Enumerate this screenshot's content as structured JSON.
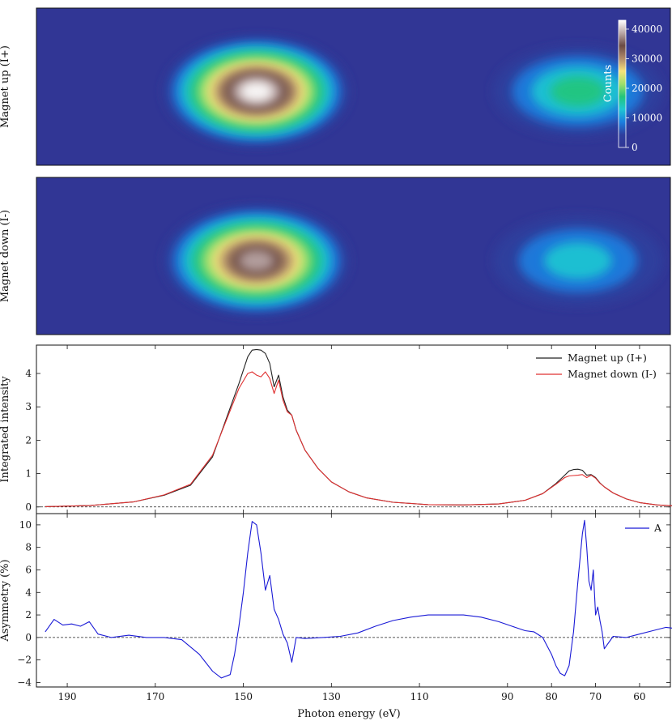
{
  "chart_data": [
    {
      "type": "heatmap",
      "ylabel": "Magnet up (I+)",
      "colorbar": {
        "label": "Counts",
        "ticks": [
          "0",
          "10000",
          "20000",
          "30000",
          "40000"
        ],
        "tick_values": [
          0,
          10000,
          20000,
          30000,
          40000
        ],
        "range": [
          0,
          43000
        ],
        "colors": [
          "#313695",
          "#2f3f9e",
          "#1a7fe0",
          "#1ec7d2",
          "#22c67a",
          "#9fe06a",
          "#f6e27a",
          "#b08a6a",
          "#6b4a44",
          "#b9a6a6",
          "#ffffff"
        ]
      },
      "blobs": [
        {
          "center_ev": 147,
          "peak_counts": 42000
        },
        {
          "center_ev": 74,
          "peak_counts": 16000
        }
      ]
    },
    {
      "type": "heatmap",
      "ylabel": "Magnet down (I-)",
      "blobs": [
        {
          "center_ev": 147,
          "peak_counts": 40000
        },
        {
          "center_ev": 74,
          "peak_counts": 14000
        }
      ]
    },
    {
      "type": "line",
      "ylabel": "Integrated intensity",
      "yticks": [
        "0",
        "1",
        "2",
        "3",
        "4"
      ],
      "ylim": [
        -0.2,
        4.85
      ],
      "x": [
        195,
        185,
        175,
        168,
        162,
        157,
        154,
        151,
        149,
        148,
        147,
        146,
        145,
        144,
        143,
        142,
        141,
        140,
        139,
        138,
        136,
        133,
        130,
        126,
        122,
        116,
        108,
        100,
        92,
        86,
        82,
        79,
        77,
        76,
        75,
        74,
        73,
        72,
        71,
        70,
        69,
        68,
        66,
        63,
        60,
        56,
        52
      ],
      "series": [
        {
          "name": "Magnet up (I+)",
          "color": "#222222",
          "values": [
            0.01,
            0.04,
            0.15,
            0.35,
            0.65,
            1.5,
            2.6,
            3.7,
            4.5,
            4.7,
            4.72,
            4.7,
            4.6,
            4.3,
            3.6,
            3.95,
            3.3,
            2.9,
            2.75,
            2.3,
            1.7,
            1.15,
            0.75,
            0.45,
            0.27,
            0.14,
            0.07,
            0.06,
            0.09,
            0.2,
            0.4,
            0.7,
            0.95,
            1.08,
            1.12,
            1.13,
            1.1,
            0.95,
            0.97,
            0.88,
            0.72,
            0.6,
            0.42,
            0.24,
            0.13,
            0.06,
            0.03
          ]
        },
        {
          "name": "Magnet down (I-)",
          "color": "#e03030",
          "values": [
            0.01,
            0.04,
            0.15,
            0.36,
            0.68,
            1.55,
            2.55,
            3.55,
            4.0,
            4.05,
            3.95,
            3.9,
            4.05,
            3.85,
            3.4,
            3.8,
            3.2,
            2.85,
            2.75,
            2.3,
            1.7,
            1.15,
            0.75,
            0.45,
            0.27,
            0.14,
            0.07,
            0.06,
            0.09,
            0.2,
            0.4,
            0.68,
            0.88,
            0.93,
            0.94,
            0.95,
            0.97,
            0.88,
            0.95,
            0.86,
            0.71,
            0.6,
            0.42,
            0.24,
            0.13,
            0.06,
            0.03
          ]
        }
      ],
      "reference_line": 0,
      "legend": "top-right"
    },
    {
      "type": "line",
      "xlabel": "Photon energy (eV)",
      "ylabel": "Asymmetry (%)",
      "xticks": [
        "190",
        "170",
        "150",
        "130",
        "110",
        "90",
        "80",
        "70",
        "60"
      ],
      "xtick_values": [
        190,
        170,
        150,
        130,
        110,
        90,
        80,
        70,
        60
      ],
      "yticks": [
        "−4",
        "−2",
        "0",
        "2",
        "4",
        "6",
        "8",
        "10"
      ],
      "ytick_values": [
        -4,
        -2,
        0,
        2,
        4,
        6,
        8,
        10
      ],
      "ylim": [
        -4.4,
        11.0
      ],
      "x": [
        195,
        193,
        191,
        189,
        187,
        185,
        183,
        180,
        176,
        172,
        168,
        164,
        160,
        157,
        155,
        153,
        152,
        151,
        150,
        149,
        148,
        147,
        146,
        145,
        144,
        143,
        142,
        141,
        140,
        139,
        138,
        136,
        132,
        128,
        124,
        120,
        116,
        112,
        108,
        104,
        100,
        96,
        92,
        89,
        86,
        84,
        82,
        80,
        79,
        78,
        77,
        76,
        75,
        74,
        73,
        72.5,
        72,
        71.5,
        71,
        70.5,
        70,
        69.5,
        69,
        68.5,
        68,
        66,
        63,
        60,
        57,
        54,
        52
      ],
      "series": [
        {
          "name": "A",
          "color": "#1a1ad6",
          "values": [
            0.5,
            1.6,
            1.1,
            1.2,
            1.0,
            1.4,
            0.3,
            0.0,
            0.2,
            0.0,
            0.0,
            -0.2,
            -1.5,
            -3.0,
            -3.6,
            -3.3,
            -1.5,
            1.0,
            4.0,
            7.5,
            10.3,
            10.0,
            7.5,
            4.2,
            5.5,
            2.5,
            1.6,
            0.3,
            -0.5,
            -2.2,
            0.0,
            -0.1,
            0.0,
            0.1,
            0.4,
            1.0,
            1.5,
            1.8,
            2.0,
            2.0,
            2.0,
            1.8,
            1.4,
            1.0,
            0.6,
            0.5,
            0.0,
            -1.5,
            -2.5,
            -3.2,
            -3.4,
            -2.5,
            0.5,
            5.0,
            9.2,
            10.4,
            8.0,
            5.0,
            4.2,
            6.0,
            2.0,
            2.7,
            1.5,
            0.5,
            -1.0,
            0.1,
            0.0,
            0.3,
            0.6,
            0.9,
            0.8
          ]
        }
      ],
      "reference_line": 0,
      "legend": "top-right"
    }
  ],
  "axis_label": "Photon energy (eV)",
  "xlim": [
    197,
    53
  ]
}
